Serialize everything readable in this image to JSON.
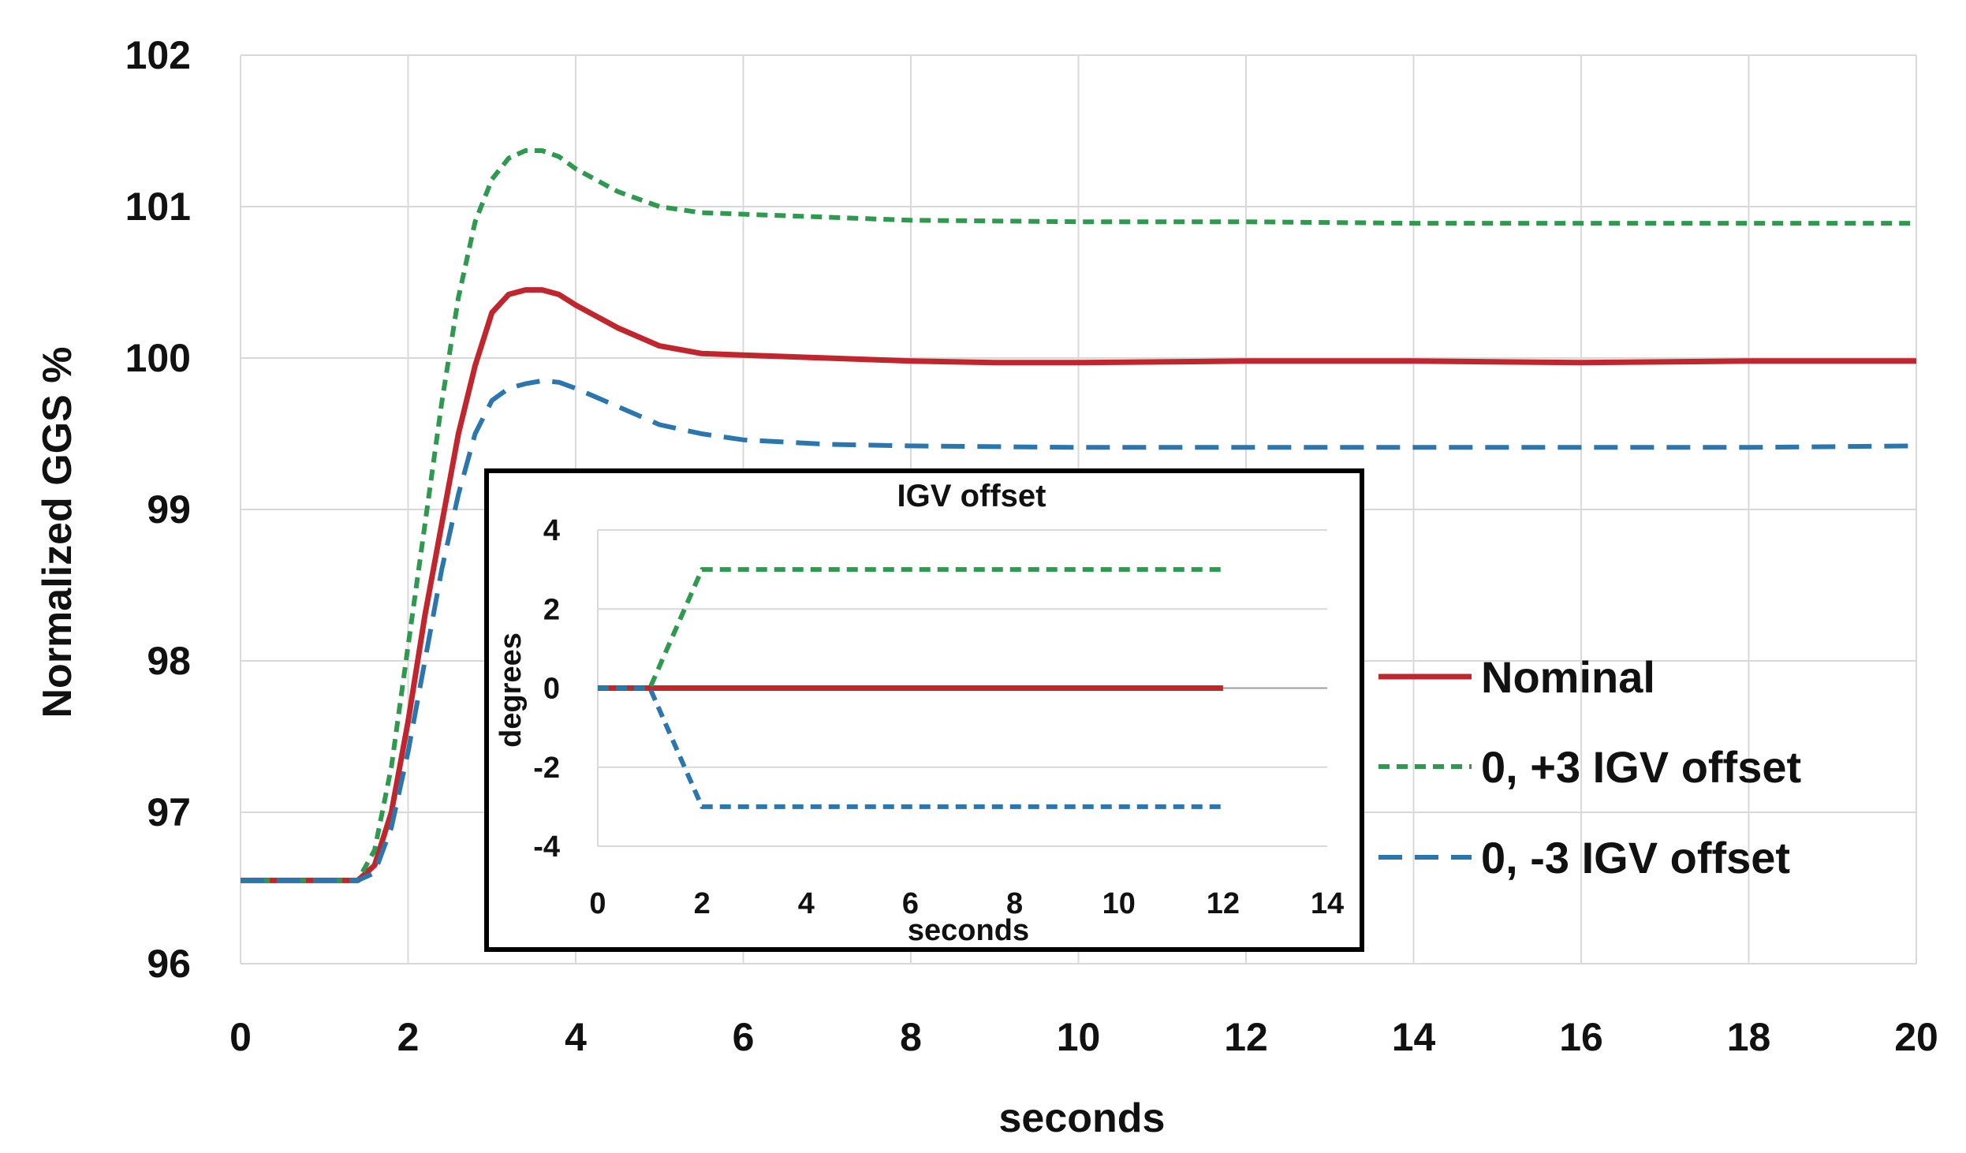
{
  "chart_data": [
    {
      "type": "line",
      "title": "",
      "xlabel": "seconds",
      "ylabel": "Normalized GGS %",
      "xlim": [
        0,
        20
      ],
      "ylim": [
        96,
        102
      ],
      "xticks": [
        0,
        2,
        4,
        6,
        8,
        10,
        12,
        14,
        16,
        18,
        20
      ],
      "yticks": [
        96,
        97,
        98,
        99,
        100,
        101,
        102
      ],
      "grid": true,
      "legend_position": "right",
      "series": [
        {
          "name": "Nominal",
          "color": "#c0262d",
          "style": "solid",
          "x": [
            0,
            1.4,
            1.6,
            1.8,
            2.0,
            2.2,
            2.4,
            2.6,
            2.8,
            3.0,
            3.2,
            3.4,
            3.6,
            3.8,
            4.0,
            4.5,
            5.0,
            5.5,
            6.0,
            7.0,
            8.0,
            9.0,
            10.0,
            12.0,
            14.0,
            16.0,
            18.0,
            20.0
          ],
          "y": [
            96.55,
            96.55,
            96.65,
            97.0,
            97.6,
            98.3,
            98.9,
            99.5,
            99.95,
            100.3,
            100.42,
            100.45,
            100.45,
            100.42,
            100.35,
            100.2,
            100.08,
            100.03,
            100.02,
            100.0,
            99.98,
            99.97,
            99.97,
            99.98,
            99.98,
            99.97,
            99.98,
            99.98
          ]
        },
        {
          "name": "0, +3 IGV offset",
          "color": "#2f9a4f",
          "style": "dash",
          "x": [
            0,
            1.4,
            1.6,
            1.8,
            2.0,
            2.2,
            2.4,
            2.6,
            2.8,
            3.0,
            3.2,
            3.4,
            3.6,
            3.8,
            4.0,
            4.5,
            5.0,
            5.5,
            6.0,
            7.0,
            8.0,
            10.0,
            12.0,
            14.0,
            16.0,
            18.0,
            20.0
          ],
          "y": [
            96.55,
            96.55,
            96.75,
            97.3,
            98.1,
            98.9,
            99.7,
            100.4,
            100.9,
            101.18,
            101.32,
            101.37,
            101.37,
            101.33,
            101.25,
            101.1,
            101.0,
            100.96,
            100.95,
            100.93,
            100.91,
            100.9,
            100.9,
            100.89,
            100.89,
            100.89,
            100.89
          ]
        },
        {
          "name": "0, -3 IGV offset",
          "color": "#2b76ad",
          "style": "longdash",
          "x": [
            0,
            1.4,
            1.6,
            1.8,
            2.0,
            2.2,
            2.4,
            2.6,
            2.8,
            3.0,
            3.2,
            3.4,
            3.6,
            3.8,
            4.0,
            4.5,
            5.0,
            5.5,
            6.0,
            7.0,
            8.0,
            10.0,
            12.0,
            14.0,
            16.0,
            18.0,
            20.0
          ],
          "y": [
            96.55,
            96.55,
            96.6,
            96.9,
            97.4,
            98.0,
            98.6,
            99.1,
            99.5,
            99.72,
            99.8,
            99.83,
            99.85,
            99.84,
            99.8,
            99.68,
            99.56,
            99.5,
            99.46,
            99.43,
            99.42,
            99.41,
            99.41,
            99.41,
            99.41,
            99.41,
            99.42
          ]
        }
      ]
    },
    {
      "type": "line",
      "title": "IGV offset",
      "xlabel": "seconds",
      "ylabel": "degrees",
      "xlim": [
        0,
        14
      ],
      "ylim": [
        -4,
        4
      ],
      "xticks": [
        0,
        2,
        4,
        6,
        8,
        10,
        12,
        14
      ],
      "yticks": [
        4,
        2,
        0,
        -2,
        -4
      ],
      "grid": true,
      "series": [
        {
          "name": "Nominal",
          "color": "#c0262d",
          "style": "solid",
          "x": [
            0,
            12
          ],
          "y": [
            0,
            0
          ]
        },
        {
          "name": "0, +3 IGV offset",
          "color": "#2f9a4f",
          "style": "dash",
          "x": [
            0,
            1,
            2,
            12
          ],
          "y": [
            0,
            0,
            3,
            3
          ]
        },
        {
          "name": "0, -3 IGV offset",
          "color": "#2b76ad",
          "style": "dash",
          "x": [
            0,
            1,
            2,
            12
          ],
          "y": [
            0,
            0,
            -3,
            -3
          ]
        }
      ]
    }
  ]
}
